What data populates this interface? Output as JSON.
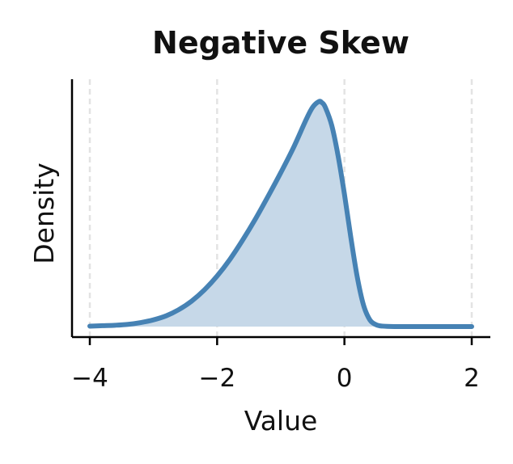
{
  "chart_data": {
    "type": "area",
    "title": "Negative Skew",
    "xlabel": "Value",
    "ylabel": "Density",
    "xlim": [
      -4.0,
      2.0
    ],
    "ylim": [
      0.0,
      0.56
    ],
    "xticks": [
      -4,
      -2,
      0,
      2
    ],
    "xtick_labels": [
      "−4",
      "−2",
      "0",
      "2"
    ],
    "grid": "vertical-dashed",
    "legend": "none",
    "series": [
      {
        "x": [
          -4.0,
          -3.8,
          -3.6,
          -3.4,
          -3.2,
          -3.0,
          -2.8,
          -2.6,
          -2.4,
          -2.2,
          -2.0,
          -1.8,
          -1.6,
          -1.4,
          -1.2,
          -1.0,
          -0.8,
          -0.6,
          -0.5,
          -0.4,
          -0.35,
          -0.3,
          -0.2,
          -0.1,
          0.0,
          0.1,
          0.2,
          0.3,
          0.4,
          0.5,
          0.6,
          0.8,
          1.0,
          1.5,
          2.0
        ],
        "y": [
          0.001,
          0.002,
          0.003,
          0.005,
          0.009,
          0.015,
          0.024,
          0.038,
          0.057,
          0.082,
          0.113,
          0.15,
          0.193,
          0.24,
          0.291,
          0.344,
          0.4,
          0.463,
          0.49,
          0.503,
          0.5,
          0.49,
          0.45,
          0.382,
          0.296,
          0.2,
          0.112,
          0.048,
          0.015,
          0.004,
          0.001,
          0.0,
          0.0,
          0.0,
          0.0
        ]
      }
    ],
    "colors": {
      "line": "#4682b4",
      "fill": "#c6d8e8",
      "grid": "#e3e3e3",
      "axis": "#000000"
    }
  }
}
